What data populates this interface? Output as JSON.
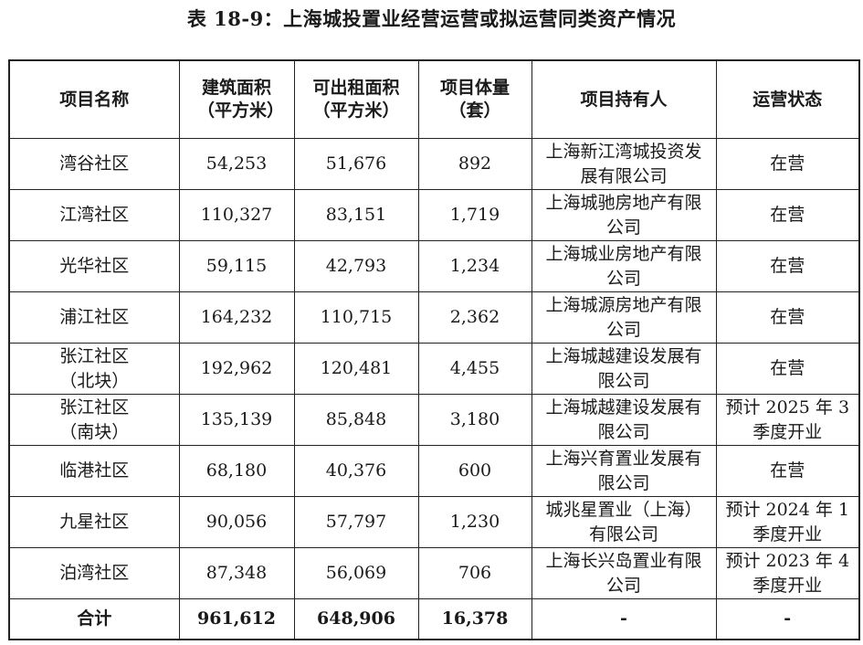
{
  "title": "表 18-9：上海城投置业经营运营或拟运营同类资产情况",
  "table": {
    "headers": {
      "name": "项目名称",
      "gfa": "建筑面积（平方米）",
      "rentable": "可出租面积（平方米）",
      "units": "项目体量（套）",
      "owner": "项目持有人",
      "status": "运营状态"
    },
    "rows": [
      {
        "name": "湾谷社区",
        "gfa": "54,253",
        "rentable": "51,676",
        "units": "892",
        "owner": "上海新江湾城投资发展有限公司",
        "status": "在营"
      },
      {
        "name": "江湾社区",
        "gfa": "110,327",
        "rentable": "83,151",
        "units": "1,719",
        "owner": "上海城驰房地产有限公司",
        "status": "在营"
      },
      {
        "name": "光华社区",
        "gfa": "59,115",
        "rentable": "42,793",
        "units": "1,234",
        "owner": "上海城业房地产有限公司",
        "status": "在营"
      },
      {
        "name": "浦江社区",
        "gfa": "164,232",
        "rentable": "110,715",
        "units": "2,362",
        "owner": "上海城源房地产有限公司",
        "status": "在营"
      },
      {
        "name": "张江社区（北块）",
        "gfa": "192,962",
        "rentable": "120,481",
        "units": "4,455",
        "owner": "上海城越建设发展有限公司",
        "status": "在营"
      },
      {
        "name": "张江社区（南块）",
        "gfa": "135,139",
        "rentable": "85,848",
        "units": "3,180",
        "owner": "上海城越建设发展有限公司",
        "status": "预计 2025 年 3 季度开业"
      },
      {
        "name": "临港社区",
        "gfa": "68,180",
        "rentable": "40,376",
        "units": "600",
        "owner": "上海兴育置业发展有限公司",
        "status": "在营"
      },
      {
        "name": "九星社区",
        "gfa": "90,056",
        "rentable": "57,797",
        "units": "1,230",
        "owner": "城兆星置业（上海）有限公司",
        "status": "预计 2024 年 1 季度开业"
      },
      {
        "name": "泊湾社区",
        "gfa": "87,348",
        "rentable": "56,069",
        "units": "706",
        "owner": "上海长兴岛置业有限公司",
        "status": "预计 2023 年 4 季度开业"
      }
    ],
    "total": {
      "name": "合计",
      "gfa": "961,612",
      "rentable": "648,906",
      "units": "16,378",
      "owner": "-",
      "status": "-"
    }
  }
}
